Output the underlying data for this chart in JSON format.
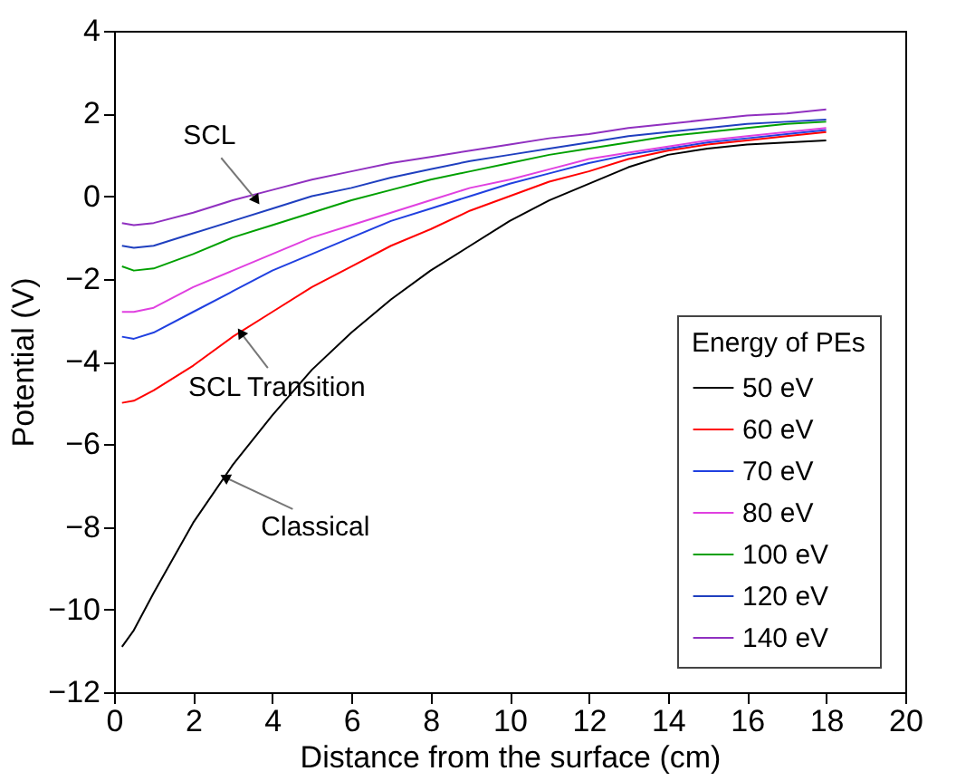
{
  "chart_data": {
    "type": "line",
    "xlabel": "Distance from the surface (cm)",
    "ylabel": "Potential (V)",
    "legend_title": "Energy of PEs",
    "x": [
      0.2,
      0.5,
      1,
      2,
      3,
      4,
      5,
      6,
      7,
      8,
      9,
      10,
      11,
      12,
      13,
      14,
      15,
      16,
      17,
      18
    ],
    "series": [
      {
        "name": "50 eV",
        "color": "#000000",
        "values": [
          -10.9,
          -10.5,
          -9.6,
          -7.9,
          -6.5,
          -5.3,
          -4.2,
          -3.3,
          -2.5,
          -1.8,
          -1.2,
          -0.6,
          -0.1,
          0.3,
          0.7,
          1.0,
          1.15,
          1.25,
          1.3,
          1.35
        ]
      },
      {
        "name": "60 eV",
        "color": "#ff0000",
        "values": [
          -5.0,
          -4.95,
          -4.7,
          -4.1,
          -3.4,
          -2.8,
          -2.2,
          -1.7,
          -1.2,
          -0.8,
          -0.35,
          0.0,
          0.35,
          0.6,
          0.9,
          1.1,
          1.25,
          1.35,
          1.45,
          1.55
        ]
      },
      {
        "name": "70 eV",
        "color": "#2040e0",
        "values": [
          -3.4,
          -3.45,
          -3.3,
          -2.8,
          -2.3,
          -1.8,
          -1.4,
          -1.0,
          -0.6,
          -0.3,
          0.0,
          0.3,
          0.55,
          0.8,
          1.0,
          1.15,
          1.3,
          1.4,
          1.5,
          1.6
        ]
      },
      {
        "name": "80 eV",
        "color": "#e040e0",
        "values": [
          -2.8,
          -2.8,
          -2.7,
          -2.2,
          -1.8,
          -1.4,
          -1.0,
          -0.7,
          -0.4,
          -0.1,
          0.2,
          0.4,
          0.65,
          0.9,
          1.05,
          1.2,
          1.35,
          1.45,
          1.55,
          1.65
        ]
      },
      {
        "name": "100 eV",
        "color": "#00a000",
        "values": [
          -1.7,
          -1.8,
          -1.75,
          -1.4,
          -1.0,
          -0.7,
          -0.4,
          -0.1,
          0.15,
          0.4,
          0.6,
          0.8,
          1.0,
          1.15,
          1.3,
          1.45,
          1.55,
          1.65,
          1.75,
          1.8
        ]
      },
      {
        "name": "120 eV",
        "color": "#1f3fbf",
        "values": [
          -1.2,
          -1.25,
          -1.2,
          -0.9,
          -0.6,
          -0.3,
          0.0,
          0.2,
          0.45,
          0.65,
          0.85,
          1.0,
          1.15,
          1.3,
          1.45,
          1.55,
          1.65,
          1.75,
          1.8,
          1.85
        ]
      },
      {
        "name": "140 eV",
        "color": "#9030c0",
        "values": [
          -0.65,
          -0.7,
          -0.65,
          -0.4,
          -0.1,
          0.15,
          0.4,
          0.6,
          0.8,
          0.95,
          1.1,
          1.25,
          1.4,
          1.5,
          1.65,
          1.75,
          1.85,
          1.95,
          2.0,
          2.1
        ]
      }
    ],
    "annotations": [
      {
        "text": "SCL",
        "x": 3.6,
        "y": -0.1
      },
      {
        "text": "SCL Transition",
        "x": 3.2,
        "y": -3.3
      },
      {
        "text": "Classical",
        "x": 2.8,
        "y": -6.8
      }
    ],
    "xlim": [
      0,
      20
    ],
    "xticks": [
      0,
      2,
      4,
      6,
      8,
      10,
      12,
      14,
      16,
      18,
      20
    ],
    "ylim": [
      -12,
      4
    ],
    "yticks": [
      -12,
      -10,
      -8,
      -6,
      -4,
      -2,
      0,
      2,
      4
    ],
    "legend": "bottom right",
    "grid": false,
    "line_style": "solid",
    "marker": "none"
  }
}
